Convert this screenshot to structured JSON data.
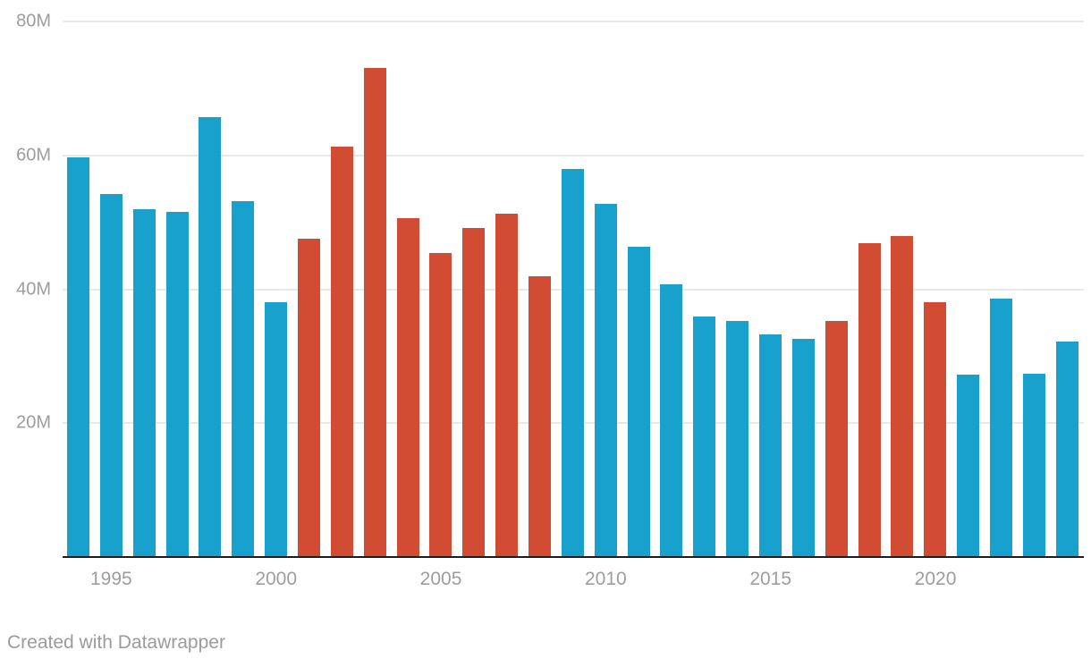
{
  "chart_data": {
    "type": "bar",
    "title": "",
    "xlabel": "",
    "ylabel": "",
    "unit": "M",
    "categories": [
      1994,
      1995,
      1996,
      1997,
      1998,
      1999,
      2000,
      2001,
      2002,
      2003,
      2004,
      2005,
      2006,
      2007,
      2008,
      2009,
      2010,
      2011,
      2012,
      2013,
      2014,
      2015,
      2016,
      2017,
      2018,
      2019,
      2020,
      2021,
      2022,
      2023,
      2024
    ],
    "values": [
      59.7,
      54.2,
      51.9,
      51.5,
      65.7,
      53.1,
      38.0,
      47.5,
      61.3,
      73.0,
      50.6,
      45.4,
      49.2,
      51.3,
      42.0,
      58.0,
      52.7,
      46.4,
      40.8,
      35.9,
      35.3,
      33.3,
      32.6,
      35.2,
      46.9,
      47.9,
      38.0,
      27.3,
      38.6,
      27.4,
      32.2
    ],
    "colors": [
      "blue",
      "blue",
      "blue",
      "blue",
      "blue",
      "blue",
      "blue",
      "red",
      "red",
      "red",
      "red",
      "red",
      "red",
      "red",
      "red",
      "blue",
      "blue",
      "blue",
      "blue",
      "blue",
      "blue",
      "blue",
      "blue",
      "red",
      "red",
      "red",
      "red",
      "blue",
      "blue",
      "blue",
      "blue"
    ],
    "color_map": {
      "blue": "#18a1cd",
      "red": "#d24b33"
    },
    "ylim": [
      0,
      80
    ],
    "grid": true,
    "legend": false,
    "y_axis": {
      "tick_values": [
        80,
        60,
        40,
        20
      ],
      "tick_labels": [
        "80M",
        "60M",
        "40M",
        "20M"
      ],
      "label_color": "#9d9d9d",
      "gridline_color": "#e8e8e8"
    },
    "x_axis": {
      "tick_values": [
        1995,
        2000,
        2005,
        2010,
        2015,
        2020
      ],
      "tick_labels": [
        "1995",
        "2000",
        "2005",
        "2010",
        "2015",
        "2020"
      ],
      "label_color": "#9d9d9d",
      "baseline_color": "#1d1d1d"
    }
  },
  "footer": {
    "attribution": "Created with Datawrapper"
  }
}
